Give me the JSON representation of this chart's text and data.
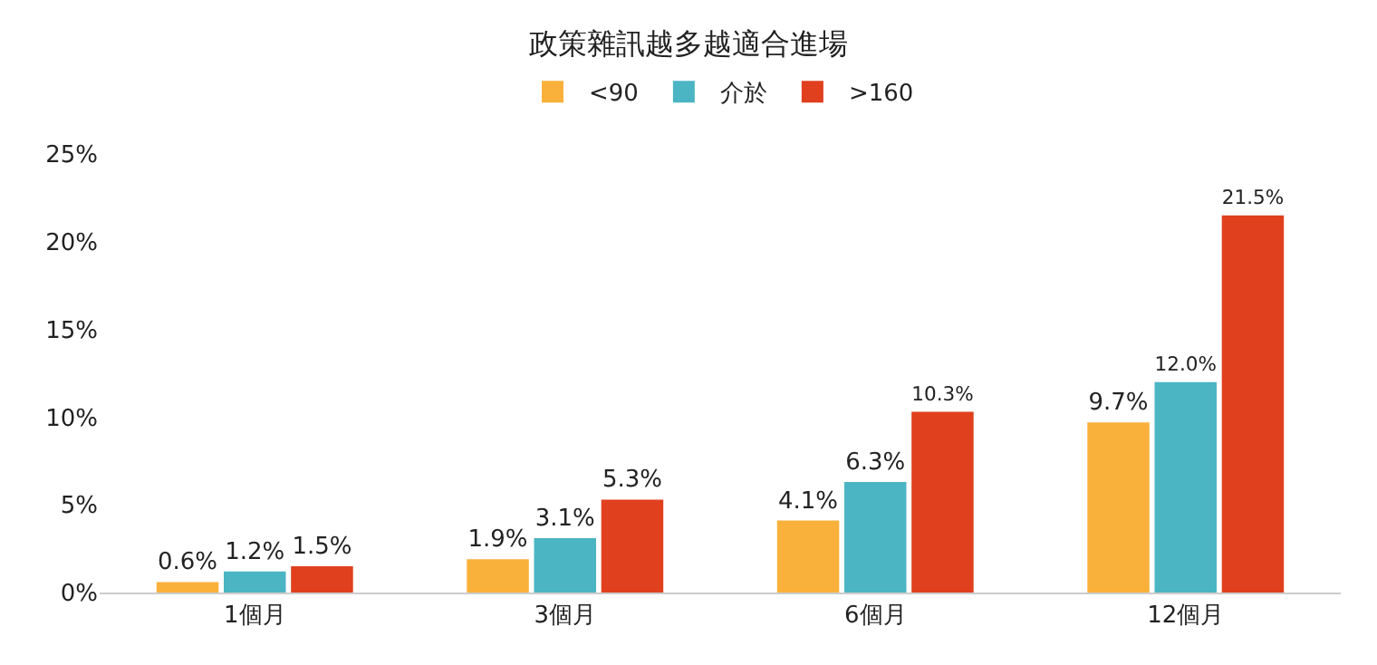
{
  "chart_data": {
    "type": "bar",
    "title": "政策雜訊越多越適合進場",
    "categories": [
      "1個月",
      "3個月",
      "6個月",
      "12個月"
    ],
    "series": [
      {
        "name": "<90",
        "color": "#f9b13c",
        "values": [
          0.6,
          1.9,
          4.1,
          9.7
        ],
        "value_labels": [
          "0.6%",
          "1.9%",
          "4.1%",
          "9.7%"
        ]
      },
      {
        "name": "介於",
        "color": "#4bb5c4",
        "values": [
          1.2,
          3.1,
          6.3,
          12.0
        ],
        "value_labels": [
          "1.2%",
          "3.1%",
          "6.3%",
          "12.0%"
        ]
      },
      {
        "name": ">160",
        "color": "#e0401e",
        "values": [
          1.5,
          5.3,
          10.3,
          21.5
        ],
        "value_labels": [
          "1.5%",
          "5.3%",
          "10.3%",
          "21.5%"
        ]
      }
    ],
    "ylim": [
      0,
      25
    ],
    "yticks": [
      {
        "value": 0,
        "label": "0%"
      },
      {
        "value": 5,
        "label": "5%"
      },
      {
        "value": 10,
        "label": "10%"
      },
      {
        "value": 15,
        "label": "15%"
      },
      {
        "value": 20,
        "label": "20%"
      },
      {
        "value": 25,
        "label": "25%"
      }
    ],
    "grid": false,
    "legend": "top"
  }
}
